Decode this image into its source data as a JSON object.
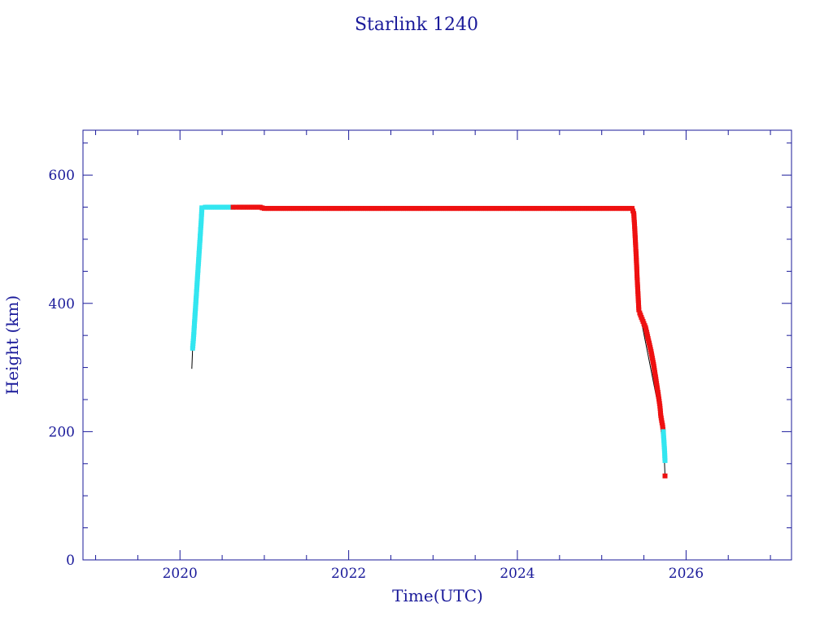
{
  "chart_data": {
    "type": "scatter",
    "title": "Starlink 1240",
    "xlabel": "Time(UTC)",
    "ylabel": "Height (km)",
    "xlim": [
      2018.85,
      2027.25
    ],
    "ylim": [
      0,
      670
    ],
    "x_ticks": [
      2020,
      2022,
      2024,
      2026
    ],
    "y_ticks": [
      0,
      200,
      400,
      600
    ],
    "grid": false,
    "colors": {
      "axis": "#1a1a9a",
      "line": "#000000",
      "cyan_series": "#33e6f0",
      "red_series": "#ee1111"
    },
    "series": [
      {
        "color": "cyan",
        "x": [
          2020.15,
          2020.16,
          2020.17,
          2020.18,
          2020.19,
          2020.2,
          2020.21,
          2020.22,
          2020.23,
          2020.24,
          2020.25,
          2020.26,
          2020.3,
          2020.35,
          2020.4,
          2020.45,
          2020.5,
          2020.55,
          2020.6,
          2020.63
        ],
        "y": [
          330,
          345,
          365,
          385,
          405,
          425,
          445,
          465,
          485,
          505,
          525,
          549,
          550,
          550,
          550,
          550,
          550,
          550,
          550,
          550
        ]
      },
      {
        "color": "red",
        "x": [
          2020.63,
          2020.7,
          2020.8,
          2020.9,
          2020.95,
          2021.0,
          2021.05,
          2021.5,
          2022.0,
          2022.5,
          2023.0,
          2023.5,
          2024.0,
          2024.5,
          2025.0,
          2025.36,
          2025.38,
          2025.39,
          2025.4,
          2025.41,
          2025.42,
          2025.43,
          2025.44,
          2025.45,
          2025.48,
          2025.52,
          2025.55,
          2025.58,
          2025.61,
          2025.63,
          2025.65,
          2025.67,
          2025.69,
          2025.7,
          2025.72,
          2025.73
        ],
        "y": [
          550,
          550,
          550,
          550,
          550,
          548,
          548,
          548,
          548,
          548,
          548,
          548,
          548,
          548,
          548,
          548,
          540,
          520,
          495,
          470,
          440,
          415,
          390,
          385,
          375,
          362,
          345,
          328,
          308,
          292,
          275,
          258,
          240,
          225,
          210,
          200
        ]
      },
      {
        "color": "cyan",
        "x": [
          2025.73,
          2025.735,
          2025.74,
          2025.745,
          2025.75
        ],
        "y": [
          200,
          190,
          180,
          170,
          155
        ]
      },
      {
        "color": "red",
        "x": [
          2025.75
        ],
        "y": [
          131
        ]
      }
    ],
    "line": {
      "x": [
        2020.14,
        2020.15,
        2020.2,
        2020.26,
        2020.63,
        2021.0,
        2025.36,
        2025.45,
        2025.73,
        2025.75
      ],
      "y": [
        298,
        330,
        425,
        549,
        550,
        548,
        548,
        385,
        200,
        131
      ]
    }
  }
}
